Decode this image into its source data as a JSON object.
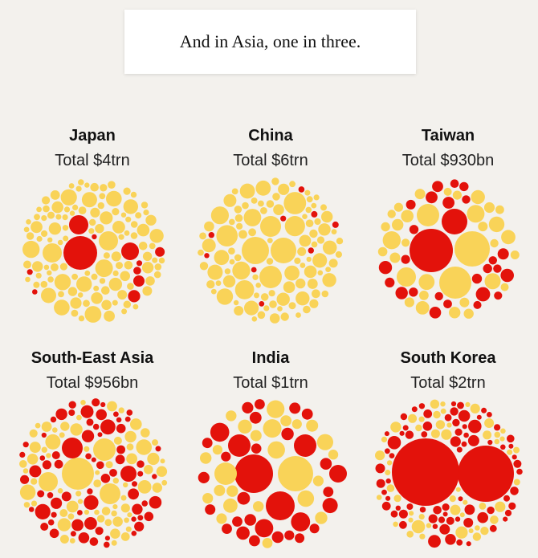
{
  "caption": "And in Asia, one in three.",
  "panels": [
    {
      "name": "Japan",
      "total": "Total $4trn"
    },
    {
      "name": "China",
      "total": "Total $6trn"
    },
    {
      "name": "Taiwan",
      "total": "Total $930bn"
    },
    {
      "name": "South-East Asia",
      "total": "Total $956bn"
    },
    {
      "name": "India",
      "total": "Total $1trn"
    },
    {
      "name": "South Korea",
      "total": "Total $2trn"
    }
  ]
}
